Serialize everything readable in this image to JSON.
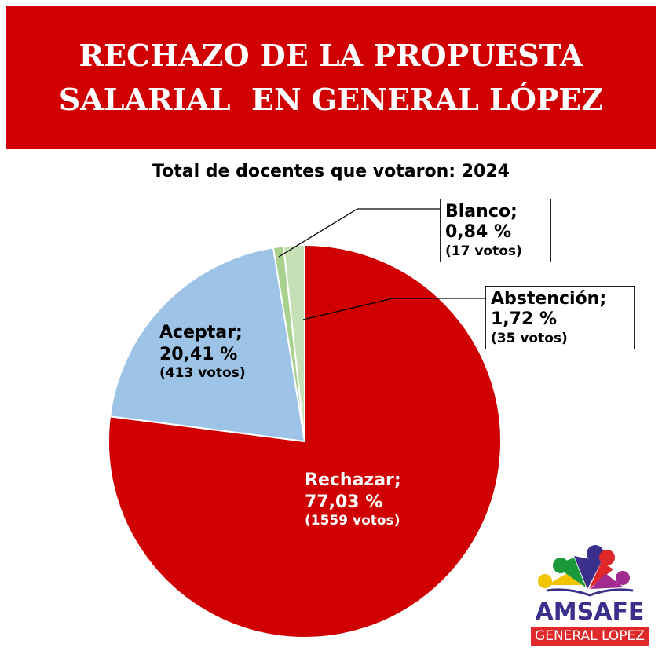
{
  "title_lines": [
    "RECHAZO DE LA PROPUESTA",
    "SALARIAL  EN GENERAL LÓPEZ"
  ],
  "chart_data": {
    "type": "pie",
    "title": "Total de docentes que votaron: 2024",
    "slices": [
      {
        "name": "Rechazar",
        "percent": 77.03,
        "pct_label": "77,03 %",
        "votes": 1559,
        "votes_label": "(1559 votos)",
        "color": "#d00000"
      },
      {
        "name": "Aceptar",
        "percent": 20.41,
        "pct_label": "20,41 %",
        "votes": 413,
        "votes_label": "(413 votos)",
        "color": "#9dc3e6"
      },
      {
        "name": "Blanco",
        "percent": 0.84,
        "pct_label": "0,84 %",
        "votes": 17,
        "votes_label": "(17 votos)",
        "color": "#a9d18e"
      },
      {
        "name": "Abstención",
        "percent": 1.72,
        "pct_label": "1,72 %",
        "votes": 35,
        "votes_label": "(35 votos)",
        "color": "#c5e0b4"
      }
    ]
  },
  "labels": {
    "rechazar": "Rechazar;",
    "aceptar": "Aceptar;",
    "blanco": "Blanco;",
    "abstencion": "Abstención;"
  },
  "logo": {
    "name": "AMSAFE",
    "sub": "GENERAL LOPEZ"
  }
}
